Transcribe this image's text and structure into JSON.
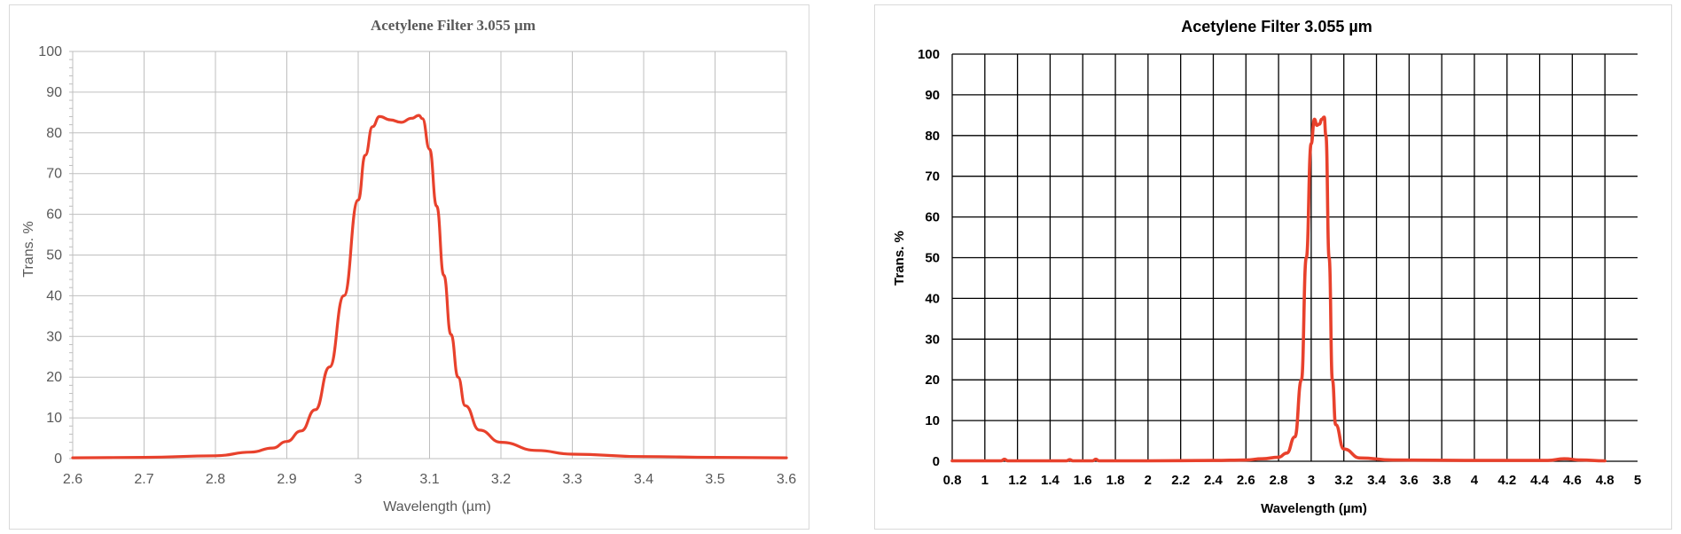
{
  "colors": {
    "series": "#e8412c",
    "left_grid": "#bfbfbf",
    "right_grid": "#000000",
    "left_text": "#595959",
    "right_text": "#000000"
  },
  "chart_data": [
    {
      "type": "line",
      "title": "Acetylene Filter 3.055 µm",
      "xlabel": "Wavelength (µm)",
      "ylabel": "Trans. %",
      "xlim": [
        2.6,
        3.6
      ],
      "ylim": [
        0,
        100
      ],
      "xticks": [
        "2.6",
        "2.7",
        "2.8",
        "2.9",
        "3",
        "3.1",
        "3.2",
        "3.3",
        "3.4",
        "3.5",
        "3.6"
      ],
      "yticks": [
        "0",
        "10",
        "20",
        "30",
        "40",
        "50",
        "60",
        "70",
        "80",
        "90",
        "100"
      ],
      "grid": true,
      "legend": "none",
      "series": [
        {
          "x": [
            2.6,
            2.7,
            2.8,
            2.85,
            2.88,
            2.9,
            2.92,
            2.94,
            2.96,
            2.98,
            3.0,
            3.01,
            3.02,
            3.03,
            3.045,
            3.06,
            3.075,
            3.085,
            3.09,
            3.1,
            3.11,
            3.12,
            3.13,
            3.14,
            3.15,
            3.17,
            3.2,
            3.25,
            3.3,
            3.4,
            3.5,
            3.6
          ],
          "values": [
            0.2,
            0.3,
            0.7,
            1.6,
            2.6,
            4.2,
            6.8,
            12.0,
            22.5,
            40.0,
            63.5,
            74.5,
            81.5,
            84.0,
            83.2,
            82.6,
            83.6,
            84.3,
            83.5,
            76.0,
            62.0,
            45.0,
            30.5,
            20.0,
            13.0,
            7.0,
            4.0,
            2.0,
            1.1,
            0.5,
            0.3,
            0.2
          ]
        }
      ]
    },
    {
      "type": "line",
      "title": "Acetylene Filter 3.055 µm",
      "xlabel": "Wavelength (µm)",
      "ylabel": "Trans. %",
      "xlim": [
        0.8,
        5
      ],
      "ylim": [
        0,
        100
      ],
      "xticks": [
        "0.8",
        "1",
        "1.2",
        "1.4",
        "1.6",
        "1.8",
        "2",
        "2.2",
        "2.4",
        "2.6",
        "2.8",
        "3",
        "3.2",
        "3.4",
        "3.6",
        "3.8",
        "4",
        "4.2",
        "4.4",
        "4.6",
        "4.8",
        "5"
      ],
      "yticks": [
        "0",
        "10",
        "20",
        "30",
        "40",
        "50",
        "60",
        "70",
        "80",
        "90",
        "100"
      ],
      "grid": true,
      "legend": "none",
      "series": [
        {
          "x": [
            0.8,
            1.1,
            1.12,
            1.14,
            1.5,
            1.52,
            1.54,
            1.66,
            1.68,
            1.7,
            2.0,
            2.4,
            2.6,
            2.7,
            2.8,
            2.85,
            2.9,
            2.94,
            2.97,
            3.0,
            3.02,
            3.035,
            3.05,
            3.065,
            3.08,
            3.09,
            3.11,
            3.13,
            3.15,
            3.2,
            3.3,
            3.5,
            4.0,
            4.45,
            4.55,
            4.65,
            4.8
          ],
          "values": [
            0.1,
            0.1,
            0.5,
            0.1,
            0.1,
            0.4,
            0.1,
            0.1,
            0.5,
            0.1,
            0.1,
            0.2,
            0.3,
            0.6,
            1.0,
            2.0,
            6.0,
            20.0,
            50.0,
            78.0,
            84.0,
            82.5,
            82.8,
            84.0,
            84.5,
            80.0,
            50.0,
            20.0,
            9.0,
            3.0,
            0.8,
            0.3,
            0.2,
            0.2,
            0.6,
            0.3,
            0.1
          ]
        }
      ]
    }
  ]
}
